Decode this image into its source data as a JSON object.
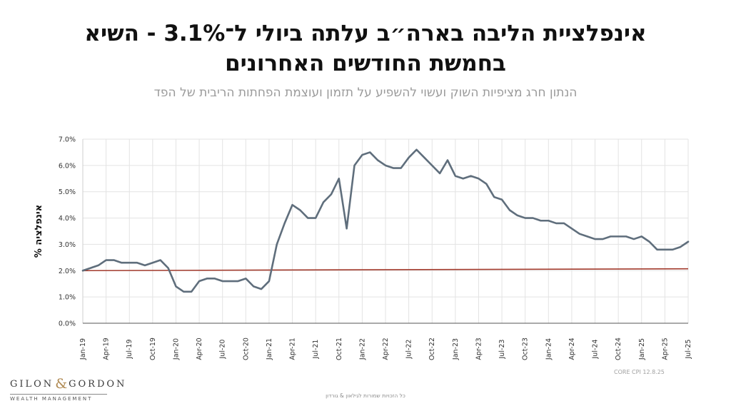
{
  "title": {
    "line1": "אינפלציית הליבה בארה״ב עלתה ביולי ל־3.1% - השיא",
    "line2": "בחמשת החודשים האחרונים"
  },
  "subtitle": "הנתון חרג מציפיות השוק ועשוי להשפיע על תזמון ועוצמת הפחתות הריבית של הפד",
  "chart_data": {
    "type": "line",
    "title": "",
    "ylabel": "% אינפלציה",
    "xlabel": "",
    "ylim": [
      0,
      7
    ],
    "y_ticks": [
      "0.0%",
      "1.0%",
      "2.0%",
      "3.0%",
      "4.0%",
      "5.0%",
      "6.0%",
      "7.0%"
    ],
    "x_tick_labels": [
      "Jan-19",
      "Apr-19",
      "Jul-19",
      "Oct-19",
      "Jan-20",
      "Apr-20",
      "Jul-20",
      "Oct-20",
      "Jan-21",
      "Apr-21",
      "Jul-21",
      "Oct-21",
      "Jan-22",
      "Apr-22",
      "Jul-22",
      "Oct-22",
      "Jan-23",
      "Apr-23",
      "Jul-23",
      "Oct-23",
      "Jan-24",
      "Apr-24",
      "Jul-24",
      "Oct-24",
      "Jan-25",
      "Apr-25",
      "Jul-25"
    ],
    "grid": true,
    "legend": "none",
    "x_start": "Jan-19",
    "x_end": "Jul-25",
    "series": [
      {
        "color": "#5f6e7c",
        "values": [
          2.0,
          2.1,
          2.2,
          2.4,
          2.4,
          2.3,
          2.3,
          2.3,
          2.2,
          2.3,
          2.4,
          2.1,
          1.4,
          1.2,
          1.2,
          1.6,
          1.7,
          1.7,
          1.6,
          1.6,
          1.6,
          1.7,
          1.4,
          1.3,
          1.6,
          3.0,
          3.8,
          4.5,
          4.3,
          4.0,
          4.0,
          4.6,
          4.9,
          5.5,
          3.6,
          6.0,
          6.4,
          6.5,
          6.2,
          6.0,
          5.9,
          5.9,
          6.3,
          6.6,
          6.3,
          6.0,
          5.7,
          6.2,
          5.6,
          5.5,
          5.6,
          5.5,
          5.3,
          4.8,
          4.7,
          4.3,
          4.1,
          4.0,
          4.0,
          3.9,
          3.9,
          3.8,
          3.8,
          3.6,
          3.4,
          3.3,
          3.2,
          3.2,
          3.3,
          3.3,
          3.3,
          3.2,
          3.3,
          3.1,
          2.8,
          2.8,
          2.8,
          2.9,
          3.1
        ]
      },
      {
        "color": "#a23a2c",
        "values": [
          2.0,
          2.07
        ],
        "note": ""
      }
    ]
  },
  "colors": {
    "series_line": "#5f6e7c",
    "target_line": "#a23a2c",
    "grid": "#e3e3e3"
  },
  "logo": {
    "left": "GILON",
    "amp": "&",
    "right": "GORDON",
    "sub": "WEALTH MANAGEMENT"
  },
  "source": "CORE CPI  12.8.25",
  "footer": "כל הזכויות שמורות לגילאון & גורדון"
}
